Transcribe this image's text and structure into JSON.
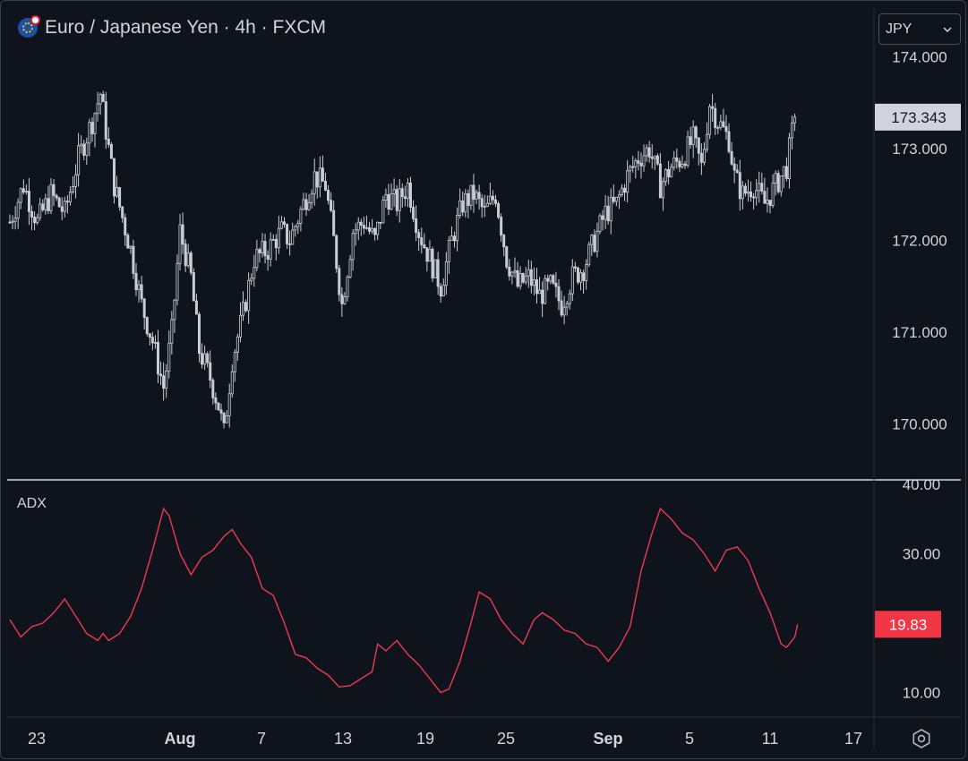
{
  "header": {
    "title": "Euro / Japanese Yen · 4h · FXCM",
    "currency_label": "JPY",
    "flag_icon": "eur-jpy-flag-icon"
  },
  "colors": {
    "background": "#0f131c",
    "candle": "#c9ccd4",
    "adx_line": "#f0394f",
    "price_badge_bg": "#d1d4dc",
    "adx_badge_bg": "#f23645",
    "axis_text": "#d1d4dc"
  },
  "chart_data": [
    {
      "type": "candlestick",
      "title": "Euro / Japanese Yen · 4h · FXCM",
      "ylim": [
        169.3,
        174.6
      ],
      "y_ticks": [
        "174.000",
        "173.000",
        "172.000",
        "171.000",
        "170.000"
      ],
      "y_tick_values": [
        174,
        173,
        172,
        171,
        170
      ],
      "last_price_label": "173.343",
      "last_price": 173.343,
      "x_labels": [
        "23",
        "Aug",
        "7",
        "13",
        "19",
        "25",
        "Sep",
        "5",
        "11",
        "17"
      ],
      "close_path": [
        [
          0,
          172.2
        ],
        [
          5,
          172.6
        ],
        [
          10,
          172.2
        ],
        [
          15,
          172.5
        ],
        [
          20,
          172.3
        ],
        [
          25,
          172.9
        ],
        [
          30,
          173.3
        ],
        [
          33,
          173.6
        ],
        [
          38,
          172.6
        ],
        [
          44,
          171.9
        ],
        [
          48,
          171.3
        ],
        [
          52,
          170.9
        ],
        [
          56,
          170.4
        ],
        [
          59,
          171.0
        ],
        [
          62,
          172.1
        ],
        [
          66,
          171.6
        ],
        [
          69,
          170.8
        ],
        [
          73,
          170.5
        ],
        [
          76,
          170.2
        ],
        [
          78,
          169.9
        ],
        [
          81,
          170.7
        ],
        [
          85,
          171.2
        ],
        [
          89,
          171.8
        ],
        [
          94,
          171.9
        ],
        [
          99,
          172.1
        ],
        [
          102,
          172.0
        ],
        [
          107,
          172.4
        ],
        [
          111,
          172.7
        ],
        [
          115,
          172.6
        ],
        [
          118,
          172.0
        ],
        [
          121,
          171.3
        ],
        [
          125,
          172.1
        ],
        [
          129,
          172.2
        ],
        [
          133,
          172.0
        ],
        [
          137,
          172.5
        ],
        [
          141,
          172.4
        ],
        [
          145,
          172.6
        ],
        [
          149,
          172.1
        ],
        [
          153,
          171.8
        ],
        [
          157,
          171.5
        ],
        [
          161,
          172.0
        ],
        [
          165,
          172.4
        ],
        [
          169,
          172.5
        ],
        [
          173,
          172.3
        ],
        [
          177,
          172.5
        ],
        [
          181,
          171.8
        ],
        [
          185,
          171.5
        ],
        [
          189,
          171.6
        ],
        [
          193,
          171.4
        ],
        [
          197,
          171.5
        ],
        [
          201,
          171.3
        ],
        [
          205,
          171.6
        ],
        [
          209,
          171.7
        ],
        [
          213,
          172.0
        ],
        [
          217,
          172.3
        ],
        [
          221,
          172.4
        ],
        [
          225,
          172.7
        ],
        [
          229,
          172.9
        ],
        [
          233,
          173.0
        ],
        [
          237,
          172.6
        ],
        [
          241,
          172.8
        ],
        [
          245,
          172.9
        ],
        [
          249,
          173.1
        ],
        [
          252,
          172.8
        ],
        [
          255,
          173.5
        ],
        [
          258,
          173.3
        ],
        [
          262,
          173.1
        ],
        [
          264,
          172.7
        ],
        [
          267,
          172.5
        ],
        [
          271,
          172.6
        ],
        [
          275,
          172.4
        ],
        [
          279,
          172.6
        ],
        [
          283,
          172.8
        ],
        [
          286,
          173.35
        ]
      ]
    },
    {
      "type": "line",
      "label": "ADX",
      "ylim": [
        7,
        41
      ],
      "y_ticks": [
        "40.00",
        "30.00",
        "10.00"
      ],
      "y_tick_values": [
        40,
        30,
        10
      ],
      "last_value_label": "19.83",
      "last_value": 19.83,
      "series": [
        {
          "values": [
            [
              0,
              20.5
            ],
            [
              4,
              18.0
            ],
            [
              8,
              19.5
            ],
            [
              12,
              20.0
            ],
            [
              16,
              21.5
            ],
            [
              20,
              23.5
            ],
            [
              24,
              21.0
            ],
            [
              28,
              18.5
            ],
            [
              32,
              17.5
            ],
            [
              34,
              18.5
            ],
            [
              36,
              17.5
            ],
            [
              40,
              18.5
            ],
            [
              44,
              21.0
            ],
            [
              48,
              25.0
            ],
            [
              52,
              30.5
            ],
            [
              56,
              36.5
            ],
            [
              58,
              35.5
            ],
            [
              62,
              30.0
            ],
            [
              66,
              27.0
            ],
            [
              70,
              29.5
            ],
            [
              74,
              30.5
            ],
            [
              78,
              32.5
            ],
            [
              81,
              33.5
            ],
            [
              84,
              31.5
            ],
            [
              88,
              29.5
            ],
            [
              92,
              25.0
            ],
            [
              96,
              24.0
            ],
            [
              100,
              20.0
            ],
            [
              104,
              15.5
            ],
            [
              108,
              15.0
            ],
            [
              112,
              13.5
            ],
            [
              116,
              12.5
            ],
            [
              120,
              10.8
            ],
            [
              124,
              11.0
            ],
            [
              128,
              12.0
            ],
            [
              132,
              13.0
            ],
            [
              134,
              17.0
            ],
            [
              137,
              16.0
            ],
            [
              141,
              17.5
            ],
            [
              145,
              15.5
            ],
            [
              149,
              14.0
            ],
            [
              153,
              12.0
            ],
            [
              157,
              10.0
            ],
            [
              160,
              10.5
            ],
            [
              164,
              14.5
            ],
            [
              168,
              20.0
            ],
            [
              171,
              24.5
            ],
            [
              175,
              23.5
            ],
            [
              179,
              20.5
            ],
            [
              183,
              18.5
            ],
            [
              187,
              17.0
            ],
            [
              191,
              20.5
            ],
            [
              194,
              21.5
            ],
            [
              198,
              20.5
            ],
            [
              202,
              19.0
            ],
            [
              206,
              18.5
            ],
            [
              210,
              17.0
            ],
            [
              214,
              16.5
            ],
            [
              218,
              14.5
            ],
            [
              222,
              16.5
            ],
            [
              226,
              19.5
            ],
            [
              230,
              27.5
            ],
            [
              234,
              33.0
            ],
            [
              237,
              36.5
            ],
            [
              241,
              35.0
            ],
            [
              245,
              33.0
            ],
            [
              249,
              32.0
            ],
            [
              253,
              30.0
            ],
            [
              257,
              27.5
            ],
            [
              261,
              30.5
            ],
            [
              265,
              31.0
            ],
            [
              269,
              29.0
            ],
            [
              273,
              25.0
            ],
            [
              277,
              21.5
            ],
            [
              281,
              17.0
            ],
            [
              283,
              16.5
            ],
            [
              286,
              18.0
            ],
            [
              287,
              19.83
            ]
          ]
        }
      ]
    }
  ]
}
